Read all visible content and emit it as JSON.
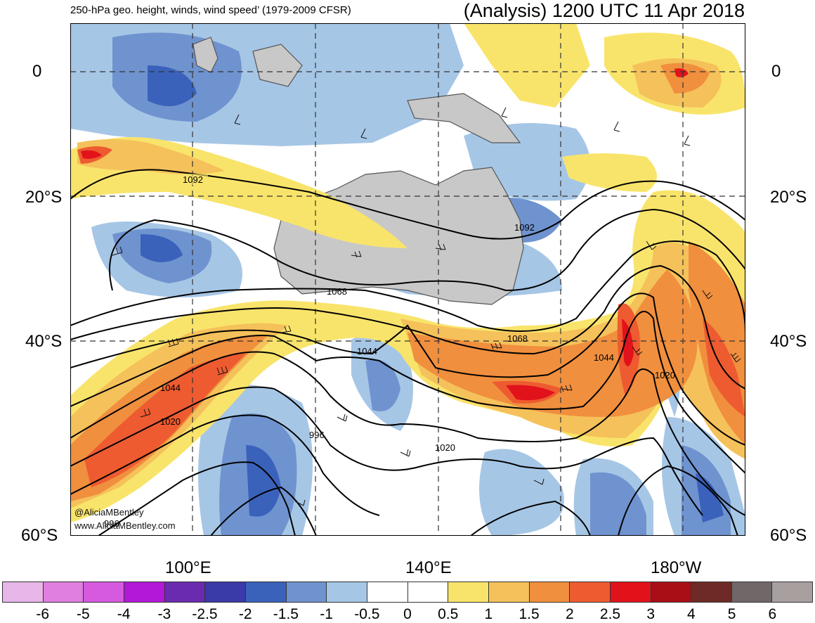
{
  "header": {
    "left_title": "250-hPa geo. height, winds, wind speed’ (1979-2009 CFSR)",
    "right_title": "(Analysis) 1200 UTC 11 Apr 2018"
  },
  "map": {
    "lat_labels": [
      "0",
      "20°S",
      "40°S",
      "60°S"
    ],
    "lon_labels": [
      "100°E",
      "140°E",
      "180°W"
    ],
    "contour_labels": [
      "1092",
      "1092",
      "1068",
      "1068",
      "1044",
      "1044",
      "1044",
      "1020",
      "1020",
      "1020",
      "996",
      "996"
    ],
    "credits": [
      "@AliciaMBentley",
      "www.AliciaMBentley.com"
    ],
    "land_color": "#c8c8c8",
    "coast_color": "#555555"
  },
  "colorbar": {
    "labels": [
      "-6",
      "-5",
      "-4",
      "-3",
      "-2.5",
      "-2",
      "-1.5",
      "-1",
      "-0.5",
      "0",
      "0.5",
      "1",
      "1.5",
      "2",
      "2.5",
      "3",
      "4",
      "5",
      "6"
    ],
    "colors": [
      "#e8b6e8",
      "#e07fe0",
      "#d65ae0",
      "#b318d8",
      "#6b2bb0",
      "#3a3aa8",
      "#3a62bb",
      "#6f93cf",
      "#a6c6e6",
      "#ffffff",
      "#ffffff",
      "#f9e46b",
      "#f5c15a",
      "#f08f3e",
      "#ee5b30",
      "#e2121b",
      "#a90e16",
      "#6e2a26",
      "#706868",
      "#a89f9f"
    ]
  }
}
